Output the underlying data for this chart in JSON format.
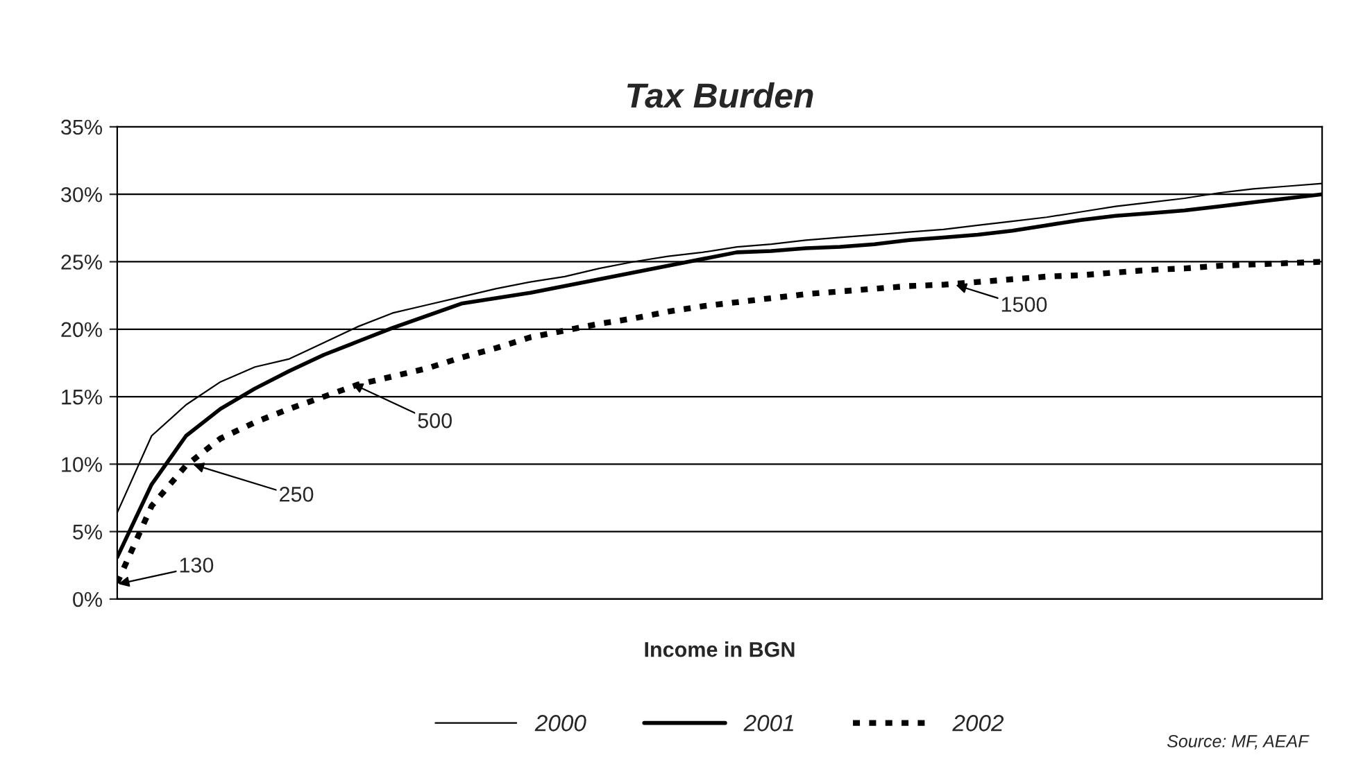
{
  "chart_data": {
    "type": "line",
    "title": "Tax Burden",
    "xlabel": "Income in BGN",
    "categories": [
      null,
      null,
      null,
      null,
      null,
      null,
      null,
      null,
      null,
      null,
      null,
      null,
      null,
      null,
      null,
      null,
      null,
      null,
      null,
      null,
      null,
      null,
      null,
      null,
      null,
      null,
      null,
      null,
      null,
      null,
      null,
      null,
      null,
      null,
      null,
      null
    ],
    "ylim": [
      0,
      35
    ],
    "yticks": [
      {
        "value": 0,
        "label": "0%"
      },
      {
        "value": 5,
        "label": "5%"
      },
      {
        "value": 10,
        "label": "10%"
      },
      {
        "value": 15,
        "label": "15%"
      },
      {
        "value": 20,
        "label": "20%"
      },
      {
        "value": 25,
        "label": "25%"
      },
      {
        "value": 30,
        "label": "30%"
      },
      {
        "value": 35,
        "label": "35%"
      }
    ],
    "tick_labels": "y",
    "grid": "y",
    "legend": "bottom",
    "marker": "none",
    "series": [
      {
        "name": "2000",
        "color": "#000000",
        "line_style": "solid",
        "values": [
          6.4,
          12.1,
          14.4,
          16.1,
          17.2,
          17.8,
          19.0,
          20.2,
          21.2,
          21.8,
          22.4,
          23.0,
          23.5,
          23.9,
          24.5,
          25.0,
          25.4,
          25.7,
          26.1,
          26.3,
          26.6,
          26.8,
          27.0,
          27.2,
          27.4,
          27.7,
          28.0,
          28.3,
          28.7,
          29.1,
          29.4,
          29.7,
          30.1,
          30.4,
          30.6,
          30.8
        ]
      },
      {
        "name": "2001",
        "color": "#000000",
        "line_style": "solid",
        "values": [
          3.1,
          8.5,
          12.1,
          14.1,
          15.6,
          16.9,
          18.1,
          19.1,
          20.1,
          21.0,
          21.9,
          22.3,
          22.7,
          23.2,
          23.7,
          24.2,
          24.7,
          25.2,
          25.7,
          25.8,
          26.0,
          26.1,
          26.3,
          26.6,
          26.8,
          27.0,
          27.3,
          27.7,
          28.1,
          28.4,
          28.6,
          28.8,
          29.1,
          29.4,
          29.7,
          30.0
        ]
      },
      {
        "name": "2002",
        "color": "#000000",
        "line_style": "dotted",
        "values": [
          1.2,
          6.9,
          9.9,
          11.9,
          13.1,
          14.1,
          15.0,
          15.9,
          16.5,
          17.1,
          17.9,
          18.6,
          19.4,
          19.9,
          20.4,
          20.8,
          21.3,
          21.7,
          22.0,
          22.3,
          22.6,
          22.8,
          23.0,
          23.2,
          23.3,
          23.5,
          23.7,
          23.9,
          24.0,
          24.2,
          24.4,
          24.5,
          24.7,
          24.8,
          24.9,
          25.0
        ]
      }
    ],
    "annotations": [
      "130",
      "250",
      "500",
      "1500",
      "Source: MF, AEAF"
    ]
  }
}
